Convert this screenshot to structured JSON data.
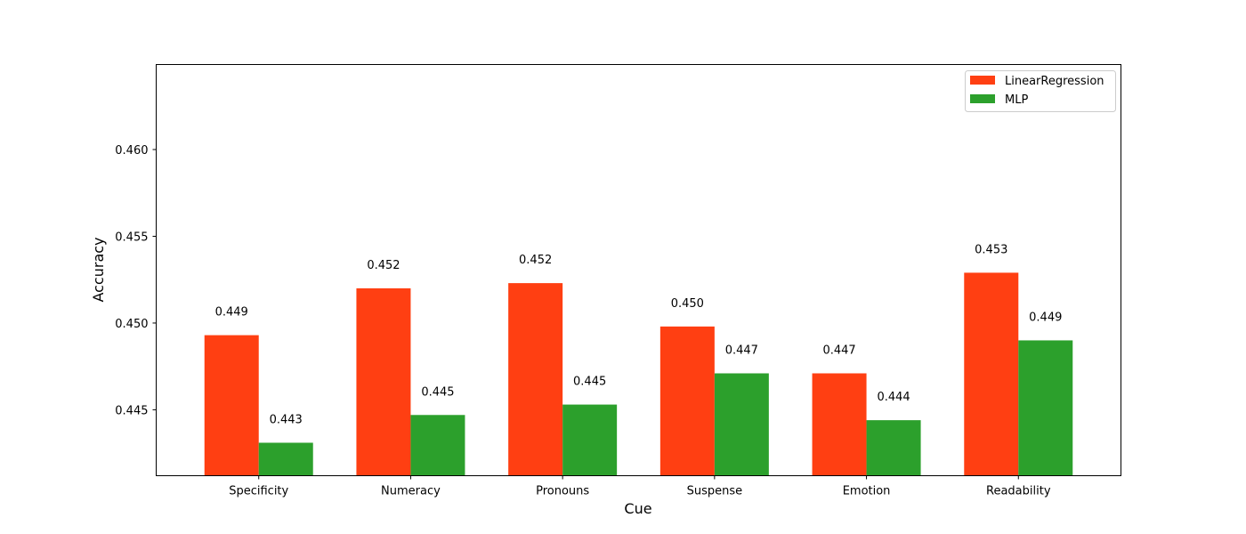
{
  "chart_data": {
    "type": "bar",
    "title": "",
    "xlabel": "Cue",
    "ylabel": "Accuracy",
    "categories": [
      "Specificity",
      "Numeracy",
      "Pronouns",
      "Suspense",
      "Emotion",
      "Readability"
    ],
    "series": [
      {
        "name": "LinearRegression",
        "color": "#ff3f12",
        "values": [
          0.4493,
          0.452,
          0.4523,
          0.4498,
          0.4471,
          0.4529
        ],
        "labels": [
          "0.449",
          "0.452",
          "0.452",
          "0.450",
          "0.447",
          "0.453"
        ]
      },
      {
        "name": "MLP",
        "color": "#2ca02c",
        "values": [
          0.4431,
          0.4447,
          0.4453,
          0.4471,
          0.4444,
          0.449
        ],
        "labels": [
          "0.443",
          "0.445",
          "0.445",
          "0.447",
          "0.444",
          "0.449"
        ]
      }
    ],
    "ylim": [
      0.4412,
      0.4649
    ],
    "yticks": [
      0.445,
      0.45,
      0.455,
      0.46
    ],
    "ytick_labels": [
      "0.445",
      "0.450",
      "0.455",
      "0.460"
    ],
    "legend": "top-right",
    "grid": false
  }
}
